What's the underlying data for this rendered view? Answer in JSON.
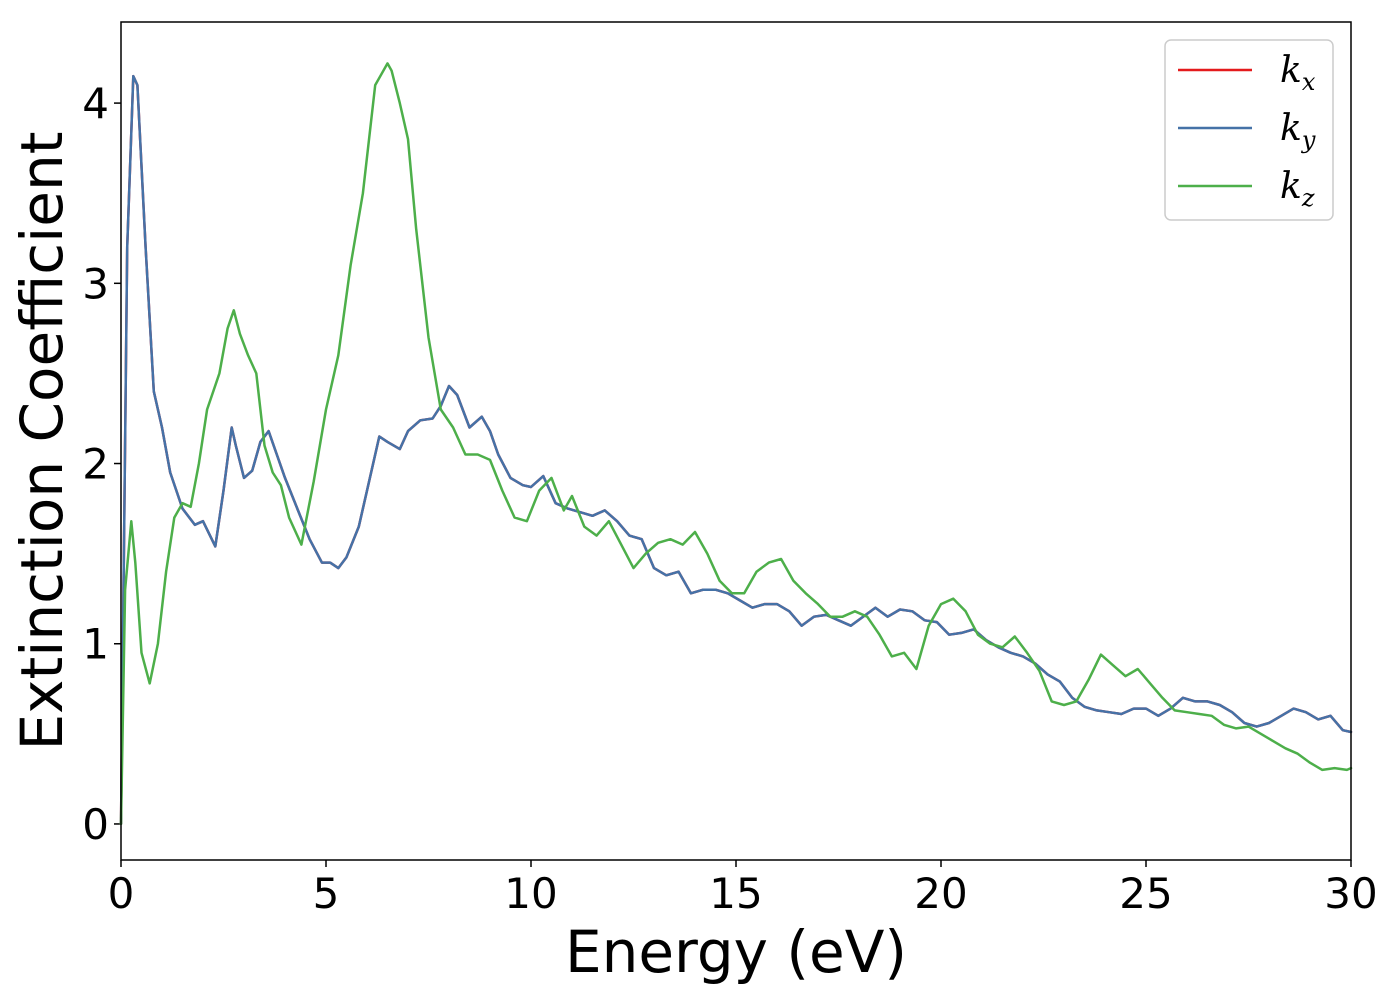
{
  "chart_data": {
    "type": "line",
    "xlabel": "Energy (eV)",
    "ylabel": "Extinction Coefficient",
    "xlim": [
      0,
      30
    ],
    "ylim": [
      -0.2,
      4.45
    ],
    "xticks": [
      0,
      5,
      10,
      15,
      20,
      25,
      30
    ],
    "yticks": [
      0,
      1,
      2,
      3,
      4
    ],
    "grid": false,
    "legend_position": "top-right",
    "colors": {
      "kx": "#e41a1c",
      "ky": "#4572a7",
      "kz": "#4daf4a"
    },
    "series": [
      {
        "name": "k_x",
        "key": "kx",
        "legend_main": "k",
        "legend_sub": "x",
        "x": [
          0,
          0.15,
          0.3,
          0.4,
          0.6,
          0.8,
          1.0,
          1.2,
          1.5,
          1.8,
          2.0,
          2.3,
          2.5,
          2.7,
          2.8,
          3.0,
          3.2,
          3.4,
          3.6,
          3.8,
          4.0,
          4.3,
          4.6,
          4.9,
          5.1,
          5.3,
          5.5,
          5.8,
          6.0,
          6.3,
          6.5,
          6.8,
          7.0,
          7.3,
          7.6,
          7.8,
          8.0,
          8.2,
          8.5,
          8.8,
          9.0,
          9.2,
          9.5,
          9.8,
          10.0,
          10.3,
          10.6,
          10.9,
          11.2,
          11.5,
          11.8,
          12.1,
          12.4,
          12.7,
          13.0,
          13.3,
          13.6,
          13.9,
          14.2,
          14.5,
          14.8,
          15.1,
          15.4,
          15.7,
          16.0,
          16.3,
          16.6,
          16.9,
          17.2,
          17.5,
          17.8,
          18.1,
          18.4,
          18.7,
          19.0,
          19.3,
          19.6,
          19.9,
          20.2,
          20.5,
          20.8,
          21.1,
          21.4,
          21.7,
          22.0,
          22.3,
          22.6,
          22.9,
          23.2,
          23.5,
          23.8,
          24.1,
          24.4,
          24.7,
          25.0,
          25.3,
          25.6,
          25.9,
          26.2,
          26.5,
          26.8,
          27.1,
          27.4,
          27.7,
          28.0,
          28.3,
          28.6,
          28.9,
          29.2,
          29.5,
          29.8,
          30.0
        ],
        "y": [
          0.0,
          3.2,
          4.15,
          4.1,
          3.2,
          2.4,
          2.2,
          1.95,
          1.75,
          1.66,
          1.68,
          1.54,
          1.85,
          2.2,
          2.1,
          1.92,
          1.96,
          2.12,
          2.18,
          2.05,
          1.92,
          1.75,
          1.58,
          1.45,
          1.45,
          1.42,
          1.48,
          1.65,
          1.85,
          2.15,
          2.12,
          2.08,
          2.18,
          2.24,
          2.25,
          2.32,
          2.43,
          2.38,
          2.2,
          2.26,
          2.18,
          2.05,
          1.92,
          1.88,
          1.87,
          1.93,
          1.78,
          1.75,
          1.73,
          1.71,
          1.74,
          1.68,
          1.6,
          1.58,
          1.42,
          1.38,
          1.4,
          1.28,
          1.3,
          1.3,
          1.28,
          1.24,
          1.2,
          1.22,
          1.22,
          1.18,
          1.1,
          1.15,
          1.16,
          1.13,
          1.1,
          1.15,
          1.2,
          1.15,
          1.19,
          1.18,
          1.13,
          1.12,
          1.05,
          1.06,
          1.08,
          1.02,
          0.98,
          0.95,
          0.93,
          0.89,
          0.83,
          0.79,
          0.7,
          0.65,
          0.63,
          0.62,
          0.61,
          0.64,
          0.64,
          0.6,
          0.64,
          0.7,
          0.68,
          0.68,
          0.66,
          0.62,
          0.56,
          0.54,
          0.56,
          0.6,
          0.64,
          0.62,
          0.58,
          0.6,
          0.52,
          0.51
        ]
      },
      {
        "name": "k_y",
        "key": "ky",
        "legend_main": "k",
        "legend_sub": "y",
        "x": [
          0,
          0.15,
          0.3,
          0.4,
          0.6,
          0.8,
          1.0,
          1.2,
          1.5,
          1.8,
          2.0,
          2.3,
          2.5,
          2.7,
          2.8,
          3.0,
          3.2,
          3.4,
          3.6,
          3.8,
          4.0,
          4.3,
          4.6,
          4.9,
          5.1,
          5.3,
          5.5,
          5.8,
          6.0,
          6.3,
          6.5,
          6.8,
          7.0,
          7.3,
          7.6,
          7.8,
          8.0,
          8.2,
          8.5,
          8.8,
          9.0,
          9.2,
          9.5,
          9.8,
          10.0,
          10.3,
          10.6,
          10.9,
          11.2,
          11.5,
          11.8,
          12.1,
          12.4,
          12.7,
          13.0,
          13.3,
          13.6,
          13.9,
          14.2,
          14.5,
          14.8,
          15.1,
          15.4,
          15.7,
          16.0,
          16.3,
          16.6,
          16.9,
          17.2,
          17.5,
          17.8,
          18.1,
          18.4,
          18.7,
          19.0,
          19.3,
          19.6,
          19.9,
          20.2,
          20.5,
          20.8,
          21.1,
          21.4,
          21.7,
          22.0,
          22.3,
          22.6,
          22.9,
          23.2,
          23.5,
          23.8,
          24.1,
          24.4,
          24.7,
          25.0,
          25.3,
          25.6,
          25.9,
          26.2,
          26.5,
          26.8,
          27.1,
          27.4,
          27.7,
          28.0,
          28.3,
          28.6,
          28.9,
          29.2,
          29.5,
          29.8,
          30.0
        ],
        "y": [
          0.0,
          3.2,
          4.15,
          4.1,
          3.2,
          2.4,
          2.2,
          1.95,
          1.75,
          1.66,
          1.68,
          1.54,
          1.85,
          2.2,
          2.1,
          1.92,
          1.96,
          2.12,
          2.18,
          2.05,
          1.92,
          1.75,
          1.58,
          1.45,
          1.45,
          1.42,
          1.48,
          1.65,
          1.85,
          2.15,
          2.12,
          2.08,
          2.18,
          2.24,
          2.25,
          2.32,
          2.43,
          2.38,
          2.2,
          2.26,
          2.18,
          2.05,
          1.92,
          1.88,
          1.87,
          1.93,
          1.78,
          1.75,
          1.73,
          1.71,
          1.74,
          1.68,
          1.6,
          1.58,
          1.42,
          1.38,
          1.4,
          1.28,
          1.3,
          1.3,
          1.28,
          1.24,
          1.2,
          1.22,
          1.22,
          1.18,
          1.1,
          1.15,
          1.16,
          1.13,
          1.1,
          1.15,
          1.2,
          1.15,
          1.19,
          1.18,
          1.13,
          1.12,
          1.05,
          1.06,
          1.08,
          1.02,
          0.98,
          0.95,
          0.93,
          0.89,
          0.83,
          0.79,
          0.7,
          0.65,
          0.63,
          0.62,
          0.61,
          0.64,
          0.64,
          0.6,
          0.64,
          0.7,
          0.68,
          0.68,
          0.66,
          0.62,
          0.56,
          0.54,
          0.56,
          0.6,
          0.64,
          0.62,
          0.58,
          0.6,
          0.52,
          0.51
        ]
      },
      {
        "name": "k_z",
        "key": "kz",
        "legend_main": "k",
        "legend_sub": "z",
        "x": [
          0,
          0.1,
          0.25,
          0.35,
          0.5,
          0.7,
          0.9,
          1.1,
          1.3,
          1.5,
          1.7,
          1.9,
          2.1,
          2.4,
          2.6,
          2.75,
          2.9,
          3.1,
          3.3,
          3.5,
          3.7,
          3.9,
          4.1,
          4.4,
          4.7,
          5.0,
          5.3,
          5.6,
          5.9,
          6.2,
          6.5,
          6.6,
          6.8,
          7.0,
          7.2,
          7.5,
          7.8,
          8.1,
          8.4,
          8.7,
          9.0,
          9.3,
          9.6,
          9.9,
          10.2,
          10.5,
          10.8,
          11.0,
          11.3,
          11.6,
          11.9,
          12.2,
          12.5,
          12.8,
          13.1,
          13.4,
          13.7,
          14.0,
          14.3,
          14.6,
          14.9,
          15.2,
          15.5,
          15.8,
          16.1,
          16.4,
          16.7,
          17.0,
          17.3,
          17.6,
          17.9,
          18.2,
          18.5,
          18.8,
          19.1,
          19.4,
          19.7,
          20.0,
          20.3,
          20.6,
          20.9,
          21.2,
          21.5,
          21.8,
          22.1,
          22.4,
          22.7,
          23.0,
          23.3,
          23.6,
          23.9,
          24.2,
          24.5,
          24.8,
          25.1,
          25.4,
          25.7,
          26.0,
          26.3,
          26.6,
          26.9,
          27.2,
          27.5,
          27.8,
          28.1,
          28.4,
          28.7,
          29.0,
          29.3,
          29.6,
          29.9,
          30.0
        ],
        "y": [
          0.0,
          1.3,
          1.68,
          1.45,
          0.95,
          0.78,
          1.0,
          1.4,
          1.7,
          1.78,
          1.76,
          2.0,
          2.3,
          2.5,
          2.75,
          2.85,
          2.72,
          2.6,
          2.5,
          2.1,
          1.95,
          1.88,
          1.7,
          1.55,
          1.9,
          2.3,
          2.6,
          3.1,
          3.5,
          4.1,
          4.22,
          4.18,
          4.0,
          3.8,
          3.3,
          2.7,
          2.3,
          2.2,
          2.05,
          2.05,
          2.02,
          1.85,
          1.7,
          1.68,
          1.85,
          1.92,
          1.74,
          1.82,
          1.65,
          1.6,
          1.68,
          1.55,
          1.42,
          1.5,
          1.56,
          1.58,
          1.55,
          1.62,
          1.5,
          1.35,
          1.28,
          1.28,
          1.4,
          1.45,
          1.47,
          1.35,
          1.28,
          1.22,
          1.15,
          1.15,
          1.18,
          1.15,
          1.05,
          0.93,
          0.95,
          0.86,
          1.1,
          1.22,
          1.25,
          1.18,
          1.05,
          1.0,
          0.98,
          1.04,
          0.95,
          0.85,
          0.68,
          0.66,
          0.68,
          0.8,
          0.94,
          0.88,
          0.82,
          0.86,
          0.78,
          0.7,
          0.63,
          0.62,
          0.61,
          0.6,
          0.55,
          0.53,
          0.54,
          0.5,
          0.46,
          0.42,
          0.39,
          0.34,
          0.3,
          0.31,
          0.3,
          0.31
        ]
      }
    ]
  }
}
